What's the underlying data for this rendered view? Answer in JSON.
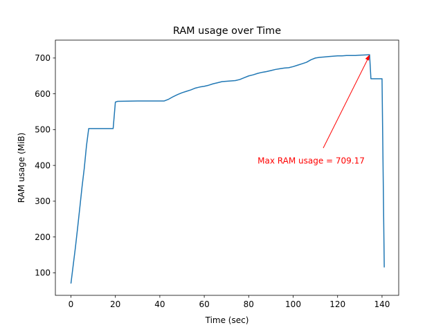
{
  "chart_data": {
    "type": "line",
    "title": "RAM usage over Time",
    "xlabel": "Time (sec)",
    "ylabel": "RAM usage (MiB)",
    "xlim": [
      -7,
      147.5
    ],
    "ylim": [
      37,
      750
    ],
    "xticks": [
      0,
      20,
      40,
      60,
      80,
      100,
      120,
      140
    ],
    "yticks": [
      100,
      200,
      300,
      400,
      500,
      600,
      700
    ],
    "grid": false,
    "series": [
      {
        "color": "#1f77b4",
        "x": [
          0,
          1,
          2,
          3,
          4,
          5,
          6,
          7,
          8,
          9,
          10,
          11,
          19,
          20,
          21,
          30,
          42,
          44,
          46,
          48,
          50,
          52,
          54,
          56,
          58,
          60,
          62,
          64,
          66,
          68,
          70,
          72,
          74,
          76,
          78,
          80,
          82,
          84,
          86,
          88,
          90,
          92,
          94,
          96,
          98,
          100,
          102,
          104,
          106,
          108,
          110,
          112,
          114,
          116,
          118,
          120,
          122,
          124,
          126,
          128,
          130,
          132,
          134.4,
          135,
          136,
          138,
          140,
          141
        ],
        "y": [
          70,
          120,
          170,
          225,
          282,
          340,
          392,
          455,
          503,
          503,
          503,
          503,
          503,
          577,
          579,
          580,
          580,
          585,
          592,
          598,
          603,
          607,
          611,
          616,
          619,
          621,
          624,
          628,
          631,
          634,
          635,
          636,
          637,
          640,
          645,
          650,
          653,
          657,
          660,
          662,
          665,
          668,
          670,
          672,
          673,
          676,
          680,
          684,
          688,
          695,
          700,
          702,
          703,
          704,
          705,
          706,
          706,
          707,
          707,
          707,
          708,
          708.5,
          709.17,
          642,
          642,
          642,
          642,
          115
        ]
      }
    ],
    "annotation": {
      "text": "Max RAM usage = 709.17",
      "color": "#ff0000",
      "point": [
        134.4,
        709.17
      ],
      "text_pos": [
        84,
        413
      ]
    }
  }
}
